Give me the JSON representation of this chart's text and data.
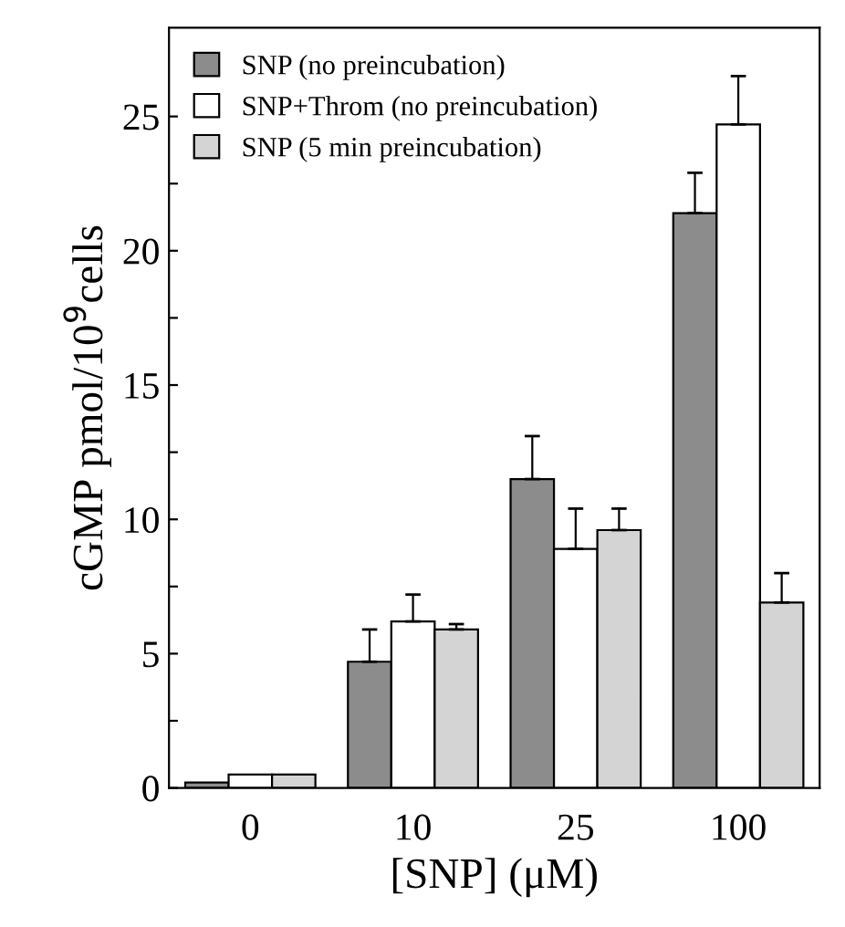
{
  "chart_data": {
    "type": "bar",
    "xlabel": "[SNP] (μM)",
    "ylabel": "cGMP pmol/10$^{9}$cells",
    "categories": [
      "0",
      "10",
      "25",
      "100"
    ],
    "series": [
      {
        "name": "SNP (no preincubation)",
        "color": "#8c8c8c",
        "values": [
          0.2,
          4.7,
          11.5,
          21.4
        ],
        "errors": [
          null,
          [
            4.7,
            5.9
          ],
          [
            11.5,
            13.1
          ],
          [
            21.4,
            22.9
          ]
        ]
      },
      {
        "name": "SNP+Throm (no preincubation)",
        "color": "#ffffff",
        "values": [
          0.5,
          6.2,
          8.9,
          24.7
        ],
        "errors": [
          null,
          [
            6.2,
            7.2
          ],
          [
            8.9,
            10.4
          ],
          [
            24.7,
            26.5
          ]
        ]
      },
      {
        "name": "SNP (5 min preincubation)",
        "color": "#d4d4d4",
        "values": [
          0.5,
          5.9,
          9.6,
          6.9
        ],
        "errors": [
          null,
          [
            5.9,
            6.1
          ],
          [
            9.6,
            10.4
          ],
          [
            6.9,
            8.0
          ]
        ]
      }
    ],
    "ylim": [
      0,
      28.3
    ],
    "yticks": [
      0,
      {
        "value": 2.5,
        "label": null
      },
      5,
      {
        "value": 7.5,
        "label": null
      },
      10,
      {
        "value": 12.5,
        "label": null
      },
      15,
      {
        "value": 17.5,
        "label": null
      },
      20,
      {
        "value": 22.5,
        "label": null
      },
      25
    ],
    "legend": "top left",
    "grid": false
  }
}
